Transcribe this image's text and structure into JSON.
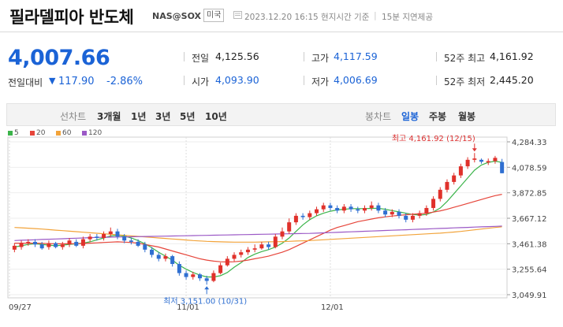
{
  "header": {
    "title": "필라델피아 반도체",
    "code": "NAS@SOX",
    "market_badge": "미국",
    "timestamp": "2023.12.20 16:15 현지시간 기준",
    "separator": "|",
    "delay_note": "15분 지연제공"
  },
  "quote": {
    "price": "4,007.66",
    "change_label": "전일대비",
    "change_arrow": "▼",
    "change_value": "117.90",
    "change_rate": "-2.86%"
  },
  "stats": {
    "prev_close": {
      "label": "전일",
      "value": "4,125.56"
    },
    "open": {
      "label": "시가",
      "value": "4,093.90"
    },
    "high": {
      "label": "고가",
      "value": "4,117.59"
    },
    "low": {
      "label": "저가",
      "value": "4,006.69"
    },
    "high52": {
      "label": "52주 최고",
      "value": "4,161.92"
    },
    "low52": {
      "label": "52주 최저",
      "value": "2,445.20"
    }
  },
  "tabs": {
    "line_chart": "선차트",
    "range_3m": "3개월",
    "range_1y": "1년",
    "range_3y": "3년",
    "range_5y": "5년",
    "range_10y": "10년",
    "candle_chart": "봉차트",
    "daily": "일봉",
    "weekly": "주봉",
    "monthly": "월봉",
    "active": "일봉"
  },
  "legend": [
    {
      "label": "5",
      "color": "#3cb44b"
    },
    {
      "label": "20",
      "color": "#e6453a"
    },
    {
      "label": "60",
      "color": "#f2a33a"
    },
    {
      "label": "120",
      "color": "#9b59c6"
    }
  ],
  "colors": {
    "up": "#e0312b",
    "down": "#2f6fd1",
    "accent": "#1b63d6"
  },
  "chart_data": {
    "type": "candlestick",
    "y_ticks": [
      "4,284.33",
      "4,078.59",
      "3,872.85",
      "3,667.12",
      "3,461.38",
      "3,255.64",
      "3,049.91"
    ],
    "ylim": [
      3049.91,
      4284.33
    ],
    "x_ticks": [
      "09/27",
      "11/01",
      "12/01"
    ],
    "high_annotation": "최고 4,161.92 (12/15)",
    "low_annotation": "최저 3,151.00 (10/31)",
    "candles": [
      [
        3420,
        3450,
        3400,
        3470
      ],
      [
        3440,
        3470,
        3420,
        3490
      ],
      [
        3470,
        3480,
        3450,
        3500
      ],
      [
        3480,
        3460,
        3440,
        3500
      ],
      [
        3460,
        3430,
        3420,
        3480
      ],
      [
        3440,
        3470,
        3420,
        3490
      ],
      [
        3470,
        3440,
        3430,
        3480
      ],
      [
        3440,
        3460,
        3420,
        3480
      ],
      [
        3460,
        3490,
        3440,
        3510
      ],
      [
        3480,
        3450,
        3440,
        3500
      ],
      [
        3450,
        3500,
        3430,
        3520
      ],
      [
        3500,
        3520,
        3480,
        3540
      ],
      [
        3520,
        3510,
        3490,
        3540
      ],
      [
        3510,
        3540,
        3490,
        3560
      ],
      [
        3540,
        3560,
        3520,
        3590
      ],
      [
        3560,
        3520,
        3500,
        3580
      ],
      [
        3520,
        3490,
        3470,
        3540
      ],
      [
        3490,
        3480,
        3460,
        3510
      ],
      [
        3480,
        3450,
        3440,
        3500
      ],
      [
        3460,
        3420,
        3400,
        3480
      ],
      [
        3420,
        3380,
        3360,
        3440
      ],
      [
        3380,
        3350,
        3330,
        3400
      ],
      [
        3350,
        3370,
        3330,
        3390
      ],
      [
        3370,
        3310,
        3290,
        3380
      ],
      [
        3310,
        3240,
        3220,
        3330
      ],
      [
        3240,
        3210,
        3190,
        3260
      ],
      [
        3210,
        3230,
        3190,
        3250
      ],
      [
        3230,
        3200,
        3180,
        3240
      ],
      [
        3200,
        3180,
        3151,
        3220
      ],
      [
        3180,
        3240,
        3170,
        3260
      ],
      [
        3240,
        3300,
        3230,
        3320
      ],
      [
        3300,
        3350,
        3290,
        3370
      ],
      [
        3350,
        3380,
        3330,
        3400
      ],
      [
        3380,
        3400,
        3360,
        3420
      ],
      [
        3400,
        3420,
        3380,
        3440
      ],
      [
        3420,
        3430,
        3400,
        3460
      ],
      [
        3430,
        3460,
        3420,
        3480
      ],
      [
        3460,
        3440,
        3420,
        3480
      ],
      [
        3440,
        3520,
        3430,
        3540
      ],
      [
        3520,
        3560,
        3500,
        3590
      ],
      [
        3560,
        3630,
        3540,
        3660
      ],
      [
        3630,
        3680,
        3610,
        3700
      ],
      [
        3680,
        3670,
        3650,
        3700
      ],
      [
        3670,
        3700,
        3650,
        3720
      ],
      [
        3700,
        3730,
        3680,
        3750
      ],
      [
        3730,
        3760,
        3710,
        3780
      ],
      [
        3760,
        3740,
        3720,
        3780
      ],
      [
        3740,
        3720,
        3700,
        3760
      ],
      [
        3720,
        3750,
        3700,
        3770
      ],
      [
        3750,
        3730,
        3710,
        3770
      ],
      [
        3730,
        3720,
        3700,
        3750
      ],
      [
        3720,
        3740,
        3700,
        3760
      ],
      [
        3740,
        3760,
        3720,
        3790
      ],
      [
        3760,
        3720,
        3700,
        3780
      ],
      [
        3720,
        3690,
        3670,
        3740
      ],
      [
        3690,
        3710,
        3670,
        3730
      ],
      [
        3710,
        3680,
        3660,
        3730
      ],
      [
        3680,
        3650,
        3630,
        3700
      ],
      [
        3650,
        3680,
        3630,
        3700
      ],
      [
        3680,
        3700,
        3660,
        3720
      ],
      [
        3700,
        3740,
        3680,
        3760
      ],
      [
        3740,
        3810,
        3720,
        3830
      ],
      [
        3810,
        3880,
        3790,
        3900
      ],
      [
        3880,
        3940,
        3860,
        3960
      ],
      [
        3940,
        3990,
        3920,
        4010
      ],
      [
        3990,
        4060,
        3970,
        4080
      ],
      [
        4060,
        4110,
        4040,
        4130
      ],
      [
        4110,
        4120,
        4090,
        4161.92
      ],
      [
        4110,
        4095,
        4080,
        4120
      ],
      [
        4090,
        4100,
        4070,
        4120
      ],
      [
        4100,
        4125,
        4080,
        4140
      ],
      [
        4093,
        4007,
        4006,
        4117
      ]
    ],
    "ma": {
      "5": [
        3440,
        3450,
        3460,
        3465,
        3460,
        3455,
        3450,
        3455,
        3460,
        3465,
        3470,
        3480,
        3495,
        3510,
        3525,
        3530,
        3525,
        3510,
        3490,
        3465,
        3435,
        3400,
        3370,
        3340,
        3300,
        3270,
        3245,
        3225,
        3210,
        3210,
        3220,
        3245,
        3285,
        3320,
        3360,
        3385,
        3405,
        3420,
        3440,
        3470,
        3510,
        3560,
        3610,
        3650,
        3680,
        3700,
        3715,
        3725,
        3730,
        3735,
        3735,
        3735,
        3737,
        3738,
        3730,
        3720,
        3710,
        3700,
        3690,
        3685,
        3690,
        3710,
        3740,
        3790,
        3850,
        3910,
        3970,
        4030,
        4070,
        4090,
        4100,
        4090
      ],
      "20": [
        3470,
        3470,
        3470,
        3470,
        3468,
        3466,
        3465,
        3465,
        3465,
        3466,
        3467,
        3470,
        3472,
        3475,
        3478,
        3480,
        3478,
        3475,
        3470,
        3460,
        3450,
        3440,
        3425,
        3410,
        3395,
        3380,
        3365,
        3350,
        3340,
        3332,
        3327,
        3325,
        3327,
        3332,
        3340,
        3350,
        3360,
        3370,
        3385,
        3400,
        3420,
        3445,
        3470,
        3495,
        3520,
        3545,
        3570,
        3590,
        3605,
        3620,
        3635,
        3645,
        3655,
        3665,
        3672,
        3678,
        3683,
        3688,
        3692,
        3696,
        3700,
        3708,
        3718,
        3730,
        3745,
        3760,
        3775,
        3790,
        3805,
        3820,
        3835,
        3845
      ],
      "60": [
        3590,
        3588,
        3585,
        3582,
        3578,
        3574,
        3570,
        3566,
        3562,
        3558,
        3554,
        3550,
        3546,
        3542,
        3538,
        3534,
        3530,
        3526,
        3522,
        3518,
        3514,
        3510,
        3506,
        3502,
        3498,
        3494,
        3490,
        3487,
        3484,
        3482,
        3480,
        3479,
        3478,
        3478,
        3478,
        3478,
        3479,
        3480,
        3481,
        3482,
        3484,
        3486,
        3488,
        3490,
        3493,
        3496,
        3499,
        3502,
        3505,
        3508,
        3511,
        3514,
        3517,
        3520,
        3523,
        3526,
        3529,
        3532,
        3535,
        3538,
        3541,
        3544,
        3547,
        3551,
        3555,
        3560,
        3566,
        3572,
        3578,
        3584,
        3590,
        3596
      ],
      "120": [
        3490,
        3492,
        3494,
        3496,
        3498,
        3500,
        3502,
        3504,
        3506,
        3508,
        3510,
        3512,
        3514,
        3515,
        3516,
        3517,
        3518,
        3519,
        3520,
        3521,
        3522,
        3523,
        3524,
        3525,
        3526,
        3527,
        3528,
        3529,
        3530,
        3531,
        3532,
        3533,
        3534,
        3535,
        3536,
        3537,
        3538,
        3539,
        3540,
        3541,
        3542,
        3543,
        3544,
        3545,
        3547,
        3549,
        3551,
        3553,
        3555,
        3557,
        3559,
        3561,
        3563,
        3565,
        3567,
        3569,
        3571,
        3573,
        3575,
        3577,
        3579,
        3581,
        3583,
        3585,
        3587,
        3589,
        3591,
        3593,
        3595,
        3597,
        3599,
        3601
      ]
    }
  }
}
